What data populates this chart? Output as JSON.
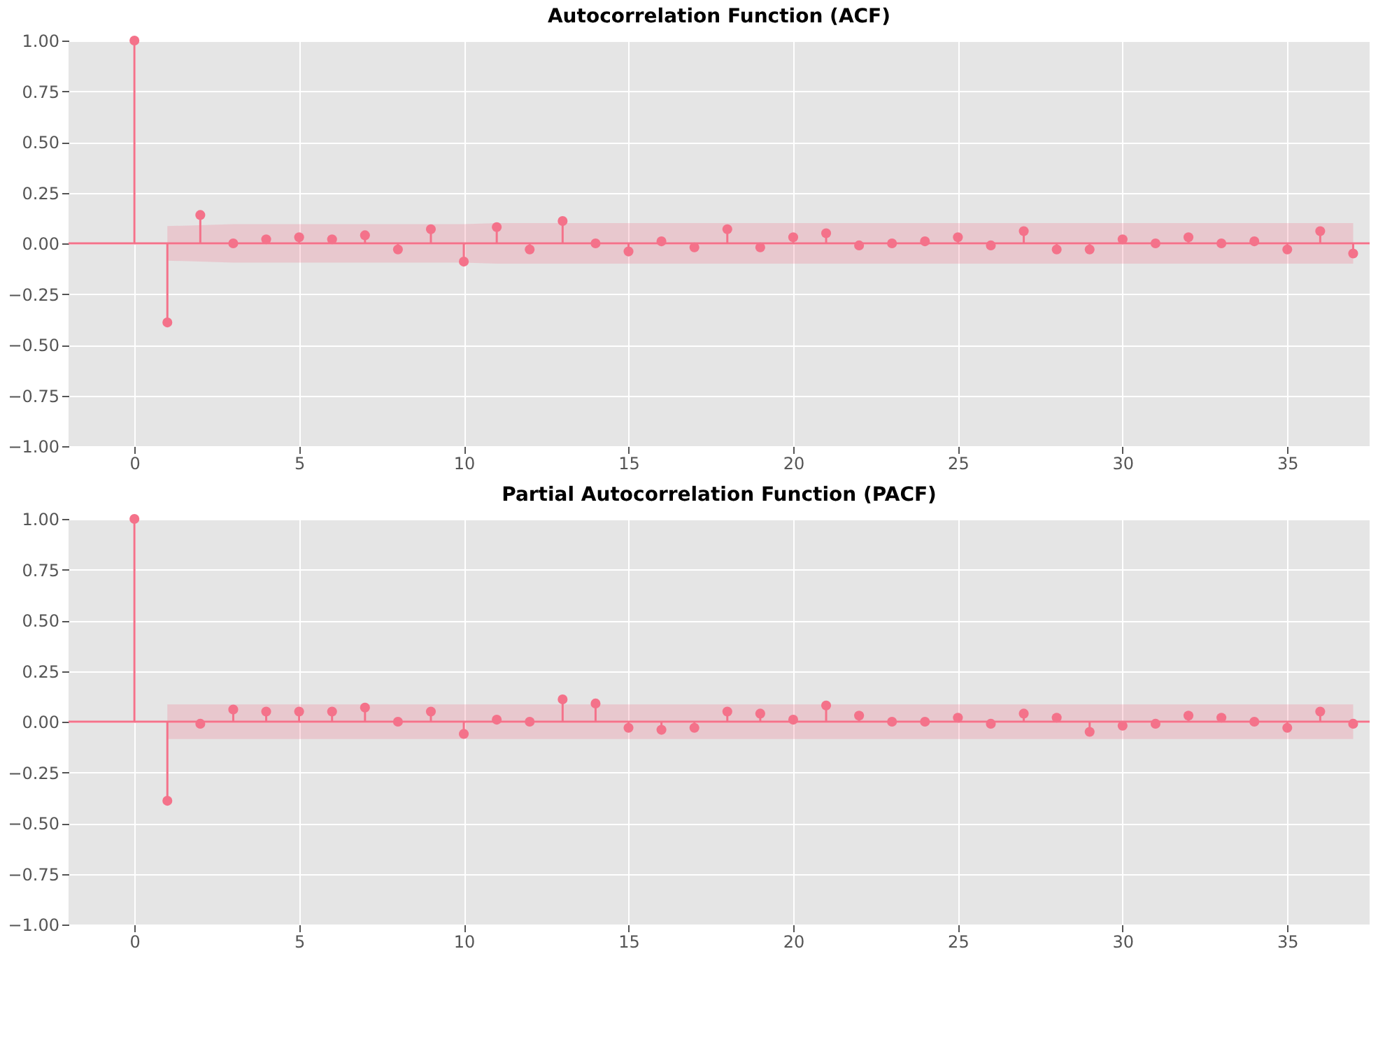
{
  "chart_data": [
    {
      "type": "lollipop",
      "title": "Autocorrelation Function (ACF)",
      "x": [
        0,
        1,
        2,
        3,
        4,
        5,
        6,
        7,
        8,
        9,
        10,
        11,
        12,
        13,
        14,
        15,
        16,
        17,
        18,
        19,
        20,
        21,
        22,
        23,
        24,
        25,
        26,
        27,
        28,
        29,
        30,
        31,
        32,
        33,
        34,
        35,
        36,
        37
      ],
      "series": [
        {
          "color": "#f4728a",
          "values": [
            1,
            -0.39,
            0.14,
            0.0,
            0.02,
            0.03,
            0.02,
            0.04,
            -0.03,
            0.07,
            -0.09,
            0.08,
            -0.03,
            0.11,
            0.0,
            -0.04,
            0.01,
            -0.02,
            0.07,
            -0.02,
            0.03,
            0.05,
            -0.01,
            0.0,
            0.01,
            0.03,
            -0.01,
            0.06,
            -0.03,
            -0.03,
            0.02,
            0.0,
            0.03,
            0.0,
            0.01,
            -0.03,
            0.06,
            -0.05
          ],
          "lower": [
            null,
            -0.085,
            -0.09,
            -0.095,
            -0.095,
            -0.095,
            -0.095,
            -0.095,
            -0.095,
            -0.095,
            -0.095,
            -0.1,
            -0.1,
            -0.1,
            -0.1,
            -0.1,
            -0.1,
            -0.1,
            -0.1,
            -0.1,
            -0.1,
            -0.1,
            -0.1,
            -0.1,
            -0.1,
            -0.1,
            -0.1,
            -0.1,
            -0.1,
            -0.1,
            -0.1,
            -0.1,
            -0.1,
            -0.1,
            -0.1,
            -0.1,
            -0.1,
            -0.1
          ],
          "upper": [
            null,
            0.085,
            0.09,
            0.095,
            0.095,
            0.095,
            0.095,
            0.095,
            0.095,
            0.095,
            0.095,
            0.1,
            0.1,
            0.1,
            0.1,
            0.1,
            0.1,
            0.1,
            0.1,
            0.1,
            0.1,
            0.1,
            0.1,
            0.1,
            0.1,
            0.1,
            0.1,
            0.1,
            0.1,
            0.1,
            0.1,
            0.1,
            0.1,
            0.1,
            0.1,
            0.1,
            0.1,
            0.1
          ]
        }
      ],
      "xlim": [
        -2,
        37.5
      ],
      "xticks": [
        0,
        5,
        10,
        15,
        20,
        25,
        30,
        35
      ],
      "ylim": [
        -1,
        1
      ],
      "yticks": [
        {
          "value": -1.0,
          "label": "−1.00"
        },
        {
          "value": -0.75,
          "label": "−0.75"
        },
        {
          "value": -0.5,
          "label": "−0.50"
        },
        {
          "value": -0.25,
          "label": "−0.25"
        },
        {
          "value": 0.0,
          "label": "0.00"
        },
        {
          "value": 0.25,
          "label": "0.25"
        },
        {
          "value": 0.5,
          "label": "0.50"
        },
        {
          "value": 0.75,
          "label": "0.75"
        },
        {
          "value": 1.0,
          "label": "1.00"
        }
      ],
      "ref_lines": [
        {
          "axis": "y",
          "value": 0,
          "color": "#f4728a"
        }
      ],
      "grid": true,
      "marker": "circle"
    },
    {
      "type": "lollipop",
      "title": "Partial Autocorrelation Function (PACF)",
      "x": [
        0,
        1,
        2,
        3,
        4,
        5,
        6,
        7,
        8,
        9,
        10,
        11,
        12,
        13,
        14,
        15,
        16,
        17,
        18,
        19,
        20,
        21,
        22,
        23,
        24,
        25,
        26,
        27,
        28,
        29,
        30,
        31,
        32,
        33,
        34,
        35,
        36,
        37
      ],
      "series": [
        {
          "color": "#f4728a",
          "values": [
            1,
            -0.39,
            -0.01,
            0.06,
            0.05,
            0.05,
            0.05,
            0.07,
            0.0,
            0.05,
            -0.06,
            0.01,
            0.0,
            0.11,
            0.09,
            -0.03,
            -0.04,
            -0.03,
            0.05,
            0.04,
            0.01,
            0.08,
            0.03,
            0.0,
            0.0,
            0.02,
            -0.01,
            0.04,
            0.02,
            -0.05,
            -0.02,
            -0.01,
            0.03,
            0.02,
            0.0,
            -0.03,
            0.05,
            -0.01
          ],
          "lower": [
            null,
            -0.085,
            -0.085,
            -0.085,
            -0.085,
            -0.085,
            -0.085,
            -0.085,
            -0.085,
            -0.085,
            -0.085,
            -0.085,
            -0.085,
            -0.085,
            -0.085,
            -0.085,
            -0.085,
            -0.085,
            -0.085,
            -0.085,
            -0.085,
            -0.085,
            -0.085,
            -0.085,
            -0.085,
            -0.085,
            -0.085,
            -0.085,
            -0.085,
            -0.085,
            -0.085,
            -0.085,
            -0.085,
            -0.085,
            -0.085,
            -0.085,
            -0.085,
            -0.085
          ],
          "upper": [
            null,
            0.085,
            0.085,
            0.085,
            0.085,
            0.085,
            0.085,
            0.085,
            0.085,
            0.085,
            0.085,
            0.085,
            0.085,
            0.085,
            0.085,
            0.085,
            0.085,
            0.085,
            0.085,
            0.085,
            0.085,
            0.085,
            0.085,
            0.085,
            0.085,
            0.085,
            0.085,
            0.085,
            0.085,
            0.085,
            0.085,
            0.085,
            0.085,
            0.085,
            0.085,
            0.085,
            0.085,
            0.085
          ]
        }
      ],
      "xlim": [
        -2,
        37.5
      ],
      "xticks": [
        0,
        5,
        10,
        15,
        20,
        25,
        30,
        35
      ],
      "ylim": [
        -1,
        1
      ],
      "yticks": [
        {
          "value": -1.0,
          "label": "−1.00"
        },
        {
          "value": -0.75,
          "label": "−0.75"
        },
        {
          "value": -0.5,
          "label": "−0.50"
        },
        {
          "value": -0.25,
          "label": "−0.25"
        },
        {
          "value": 0.0,
          "label": "0.00"
        },
        {
          "value": 0.25,
          "label": "0.25"
        },
        {
          "value": 0.5,
          "label": "0.50"
        },
        {
          "value": 0.75,
          "label": "0.75"
        },
        {
          "value": 1.0,
          "label": "1.00"
        }
      ],
      "ref_lines": [
        {
          "axis": "y",
          "value": 0,
          "color": "#f4728a"
        }
      ],
      "grid": true,
      "marker": "circle"
    }
  ]
}
